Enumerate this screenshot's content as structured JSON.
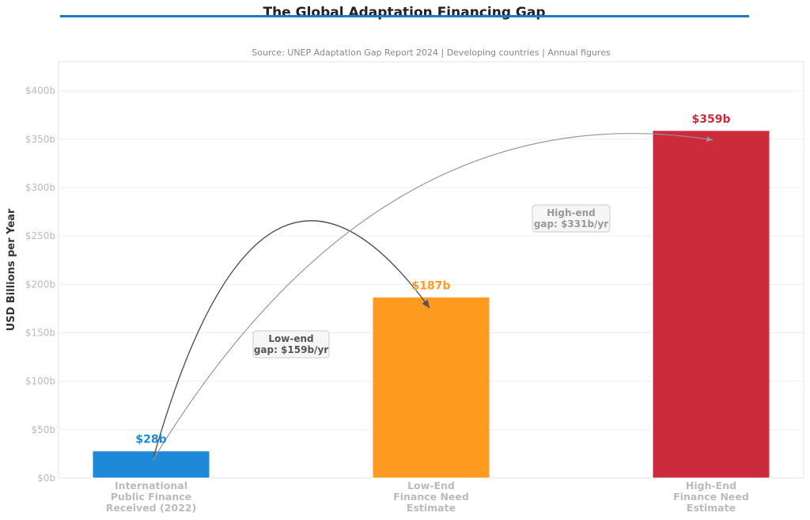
{
  "chart_data": {
    "type": "bar",
    "title": "The Global Adaptation Financing Gap",
    "subtitle": "Source: UNEP Adaptation Gap Report 2024  |  Developing countries  |  Annual figures",
    "ylabel": "USD Billions per Year",
    "ylim": [
      0,
      430
    ],
    "yticks": [
      0,
      50,
      100,
      150,
      200,
      250,
      300,
      350,
      400
    ],
    "ytick_labels": [
      "$0b",
      "$50b",
      "$100b",
      "$150b",
      "$200b",
      "$250b",
      "$300b",
      "$350b",
      "$400b"
    ],
    "grid": true,
    "categories": [
      [
        "International",
        "Public Finance",
        "Received (2022)"
      ],
      [
        "Low-End",
        "Finance Need",
        "Estimate"
      ],
      [
        "High-End",
        "Finance Need",
        "Estimate"
      ]
    ],
    "values": [
      28,
      187,
      359
    ],
    "value_labels": [
      "$28b",
      "$187b",
      "$359b"
    ],
    "colors": [
      "#1e88d9",
      "#fd9a1f",
      "#cc2b3b"
    ],
    "accent_color": "#1a7ac8",
    "annotations": [
      {
        "lines": [
          "Low-end",
          "gap: $159b/yr"
        ],
        "from": 0,
        "to": 1,
        "color": "#555555"
      },
      {
        "lines": [
          "High-end",
          "gap: $331b/yr"
        ],
        "from": 0,
        "to": 2,
        "color": "#999999"
      }
    ]
  }
}
